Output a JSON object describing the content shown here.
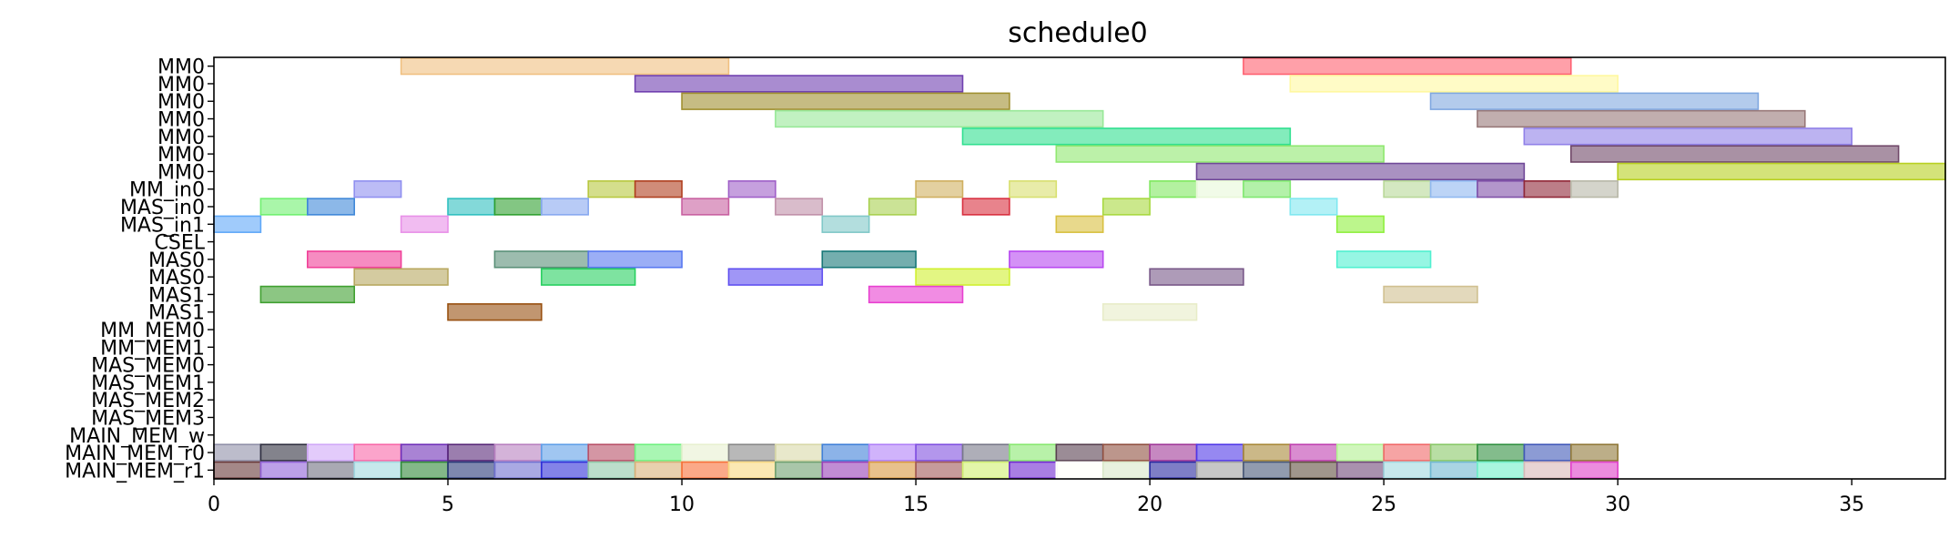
{
  "chart_data": {
    "type": "gantt",
    "title": "schedule0",
    "xlabel": "",
    "ylabel": "",
    "xlim": [
      0,
      37
    ],
    "x_ticks": [
      0,
      5,
      10,
      15,
      20,
      25,
      30,
      35
    ],
    "grid": false,
    "rows": [
      "MM0",
      "MM0",
      "MM0",
      "MM0",
      "MM0",
      "MM0",
      "MM0",
      "MM_in0",
      "MAS_in0",
      "MAS_in1",
      "CSEL",
      "MAS0",
      "MAS0",
      "MAS1",
      "MAS1",
      "MM_MEM0",
      "MM_MEM1",
      "MAS_MEM0",
      "MAS_MEM1",
      "MAS_MEM2",
      "MAS_MEM3",
      "MAIN_MEM_w",
      "MAIN_MEM_r0",
      "MAIN_MEM_r1"
    ],
    "tasks": [
      {
        "row": 0,
        "start": 4,
        "end": 11,
        "color": "#f0c080"
      },
      {
        "row": 0,
        "start": 22,
        "end": 29,
        "color": "#ff6070"
      },
      {
        "row": 1,
        "start": 9,
        "end": 16,
        "color": "#7040b0"
      },
      {
        "row": 1,
        "start": 23,
        "end": 30,
        "color": "#fff8a0"
      },
      {
        "row": 2,
        "start": 10,
        "end": 17,
        "color": "#a09030"
      },
      {
        "row": 2,
        "start": 26,
        "end": 33,
        "color": "#80a8e0"
      },
      {
        "row": 3,
        "start": 12,
        "end": 19,
        "color": "#98e898"
      },
      {
        "row": 3,
        "start": 27,
        "end": 34,
        "color": "#987878"
      },
      {
        "row": 4,
        "start": 16,
        "end": 23,
        "color": "#30e090"
      },
      {
        "row": 4,
        "start": 28,
        "end": 35,
        "color": "#9080e8"
      },
      {
        "row": 5,
        "start": 18,
        "end": 25,
        "color": "#90e870"
      },
      {
        "row": 5,
        "start": 29,
        "end": 36,
        "color": "#704868"
      },
      {
        "row": 6,
        "start": 21,
        "end": 28,
        "color": "#704898"
      },
      {
        "row": 6,
        "start": 30,
        "end": 37,
        "color": "#b8d020"
      },
      {
        "row": 7,
        "start": 3,
        "end": 4,
        "color": "#9090f0"
      },
      {
        "row": 7,
        "start": 8,
        "end": 9,
        "color": "#b8c840"
      },
      {
        "row": 7,
        "start": 9,
        "end": 10,
        "color": "#b04020"
      },
      {
        "row": 7,
        "start": 11,
        "end": 12,
        "color": "#a060c8"
      },
      {
        "row": 7,
        "start": 15,
        "end": 16,
        "color": "#d0b060"
      },
      {
        "row": 7,
        "start": 17,
        "end": 18,
        "color": "#d8e070"
      },
      {
        "row": 7,
        "start": 20,
        "end": 21,
        "color": "#80e860"
      },
      {
        "row": 7,
        "start": 21,
        "end": 22,
        "color": "#e8f8d8"
      },
      {
        "row": 7,
        "start": 22,
        "end": 23,
        "color": "#80e870"
      },
      {
        "row": 7,
        "start": 25,
        "end": 26,
        "color": "#b8d898"
      },
      {
        "row": 7,
        "start": 26,
        "end": 27,
        "color": "#90b8f0"
      },
      {
        "row": 7,
        "start": 27,
        "end": 28,
        "color": "#8050a8"
      },
      {
        "row": 7,
        "start": 28,
        "end": 29,
        "color": "#902838"
      },
      {
        "row": 7,
        "start": 29,
        "end": 30,
        "color": "#b8b8a8"
      },
      {
        "row": 8,
        "start": 1,
        "end": 2,
        "color": "#70f070"
      },
      {
        "row": 8,
        "start": 2,
        "end": 3,
        "color": "#4088d8"
      },
      {
        "row": 8,
        "start": 5,
        "end": 6,
        "color": "#30c0c0"
      },
      {
        "row": 8,
        "start": 6,
        "end": 7,
        "color": "#30a030"
      },
      {
        "row": 8,
        "start": 7,
        "end": 8,
        "color": "#88a8f0"
      },
      {
        "row": 8,
        "start": 10,
        "end": 11,
        "color": "#c860a0"
      },
      {
        "row": 8,
        "start": 12,
        "end": 13,
        "color": "#c090a8"
      },
      {
        "row": 8,
        "start": 14,
        "end": 15,
        "color": "#a8d050"
      },
      {
        "row": 8,
        "start": 16,
        "end": 17,
        "color": "#d83040"
      },
      {
        "row": 8,
        "start": 19,
        "end": 20,
        "color": "#a8d840"
      },
      {
        "row": 8,
        "start": 23,
        "end": 24,
        "color": "#80e8f0"
      },
      {
        "row": 9,
        "start": 0,
        "end": 1,
        "color": "#60a8f8"
      },
      {
        "row": 9,
        "start": 4,
        "end": 5,
        "color": "#e890e8"
      },
      {
        "row": 9,
        "start": 13,
        "end": 14,
        "color": "#80c8c8"
      },
      {
        "row": 9,
        "start": 18,
        "end": 19,
        "color": "#d8c040"
      },
      {
        "row": 9,
        "start": 24,
        "end": 25,
        "color": "#90f040"
      },
      {
        "row": 11,
        "start": 2,
        "end": 4,
        "color": "#f04098"
      },
      {
        "row": 11,
        "start": 6,
        "end": 8,
        "color": "#5a9078"
      },
      {
        "row": 11,
        "start": 8,
        "end": 10,
        "color": "#5878f0"
      },
      {
        "row": 11,
        "start": 13,
        "end": 15,
        "color": "#187878"
      },
      {
        "row": 11,
        "start": 17,
        "end": 19,
        "color": "#b848f0"
      },
      {
        "row": 11,
        "start": 24,
        "end": 26,
        "color": "#50f0d0"
      },
      {
        "row": 12,
        "start": 3,
        "end": 5,
        "color": "#b8a860"
      },
      {
        "row": 12,
        "start": 7,
        "end": 9,
        "color": "#28d060"
      },
      {
        "row": 12,
        "start": 11,
        "end": 13,
        "color": "#6050f0"
      },
      {
        "row": 12,
        "start": 15,
        "end": 17,
        "color": "#d0f030"
      },
      {
        "row": 12,
        "start": 20,
        "end": 22,
        "color": "#785888"
      },
      {
        "row": 13,
        "start": 1,
        "end": 3,
        "color": "#40a030"
      },
      {
        "row": 13,
        "start": 14,
        "end": 16,
        "color": "#e840d0"
      },
      {
        "row": 13,
        "start": 25,
        "end": 27,
        "color": "#d0c090"
      },
      {
        "row": 14,
        "start": 5,
        "end": 7,
        "color": "#985010"
      },
      {
        "row": 14,
        "start": 19,
        "end": 21,
        "color": "#e8ecc8"
      },
      {
        "row": 22,
        "start": 0,
        "end": 1,
        "color": "#9090a8"
      },
      {
        "row": 22,
        "start": 1,
        "end": 2,
        "color": "#303040"
      },
      {
        "row": 22,
        "start": 2,
        "end": 3,
        "color": "#d0a8f8"
      },
      {
        "row": 22,
        "start": 3,
        "end": 4,
        "color": "#f868a8"
      },
      {
        "row": 22,
        "start": 4,
        "end": 5,
        "color": "#7030b8"
      },
      {
        "row": 22,
        "start": 5,
        "end": 6,
        "color": "#582878"
      },
      {
        "row": 22,
        "start": 6,
        "end": 7,
        "color": "#b880c0"
      },
      {
        "row": 22,
        "start": 7,
        "end": 8,
        "color": "#60a0e8"
      },
      {
        "row": 22,
        "start": 8,
        "end": 9,
        "color": "#b85068"
      },
      {
        "row": 22,
        "start": 9,
        "end": 10,
        "color": "#70f080"
      },
      {
        "row": 22,
        "start": 10,
        "end": 11,
        "color": "#e8f0d0"
      },
      {
        "row": 22,
        "start": 11,
        "end": 12,
        "color": "#888888"
      },
      {
        "row": 22,
        "start": 12,
        "end": 13,
        "color": "#d8d8a8"
      },
      {
        "row": 22,
        "start": 13,
        "end": 14,
        "color": "#4080d8"
      },
      {
        "row": 22,
        "start": 14,
        "end": 15,
        "color": "#b080f8"
      },
      {
        "row": 22,
        "start": 15,
        "end": 16,
        "color": "#8050e0"
      },
      {
        "row": 22,
        "start": 16,
        "end": 17,
        "color": "#787888"
      },
      {
        "row": 22,
        "start": 17,
        "end": 18,
        "color": "#88e870"
      },
      {
        "row": 22,
        "start": 18,
        "end": 19,
        "color": "#584050"
      },
      {
        "row": 22,
        "start": 19,
        "end": 20,
        "color": "#905040"
      },
      {
        "row": 22,
        "start": 20,
        "end": 21,
        "color": "#a03898"
      },
      {
        "row": 22,
        "start": 21,
        "end": 22,
        "color": "#5038e8"
      },
      {
        "row": 22,
        "start": 22,
        "end": 23,
        "color": "#a88838"
      },
      {
        "row": 22,
        "start": 23,
        "end": 24,
        "color": "#c040b0"
      },
      {
        "row": 22,
        "start": 24,
        "end": 25,
        "color": "#b0f090"
      },
      {
        "row": 22,
        "start": 25,
        "end": 26,
        "color": "#f06868"
      },
      {
        "row": 22,
        "start": 26,
        "end": 27,
        "color": "#88c868"
      },
      {
        "row": 22,
        "start": 27,
        "end": 28,
        "color": "#309040"
      },
      {
        "row": 22,
        "start": 28,
        "end": 29,
        "color": "#4058b8"
      },
      {
        "row": 22,
        "start": 29,
        "end": 30,
        "color": "#907838"
      },
      {
        "row": 23,
        "start": 0,
        "end": 1,
        "color": "#683838"
      },
      {
        "row": 23,
        "start": 1,
        "end": 2,
        "color": "#9060d8"
      },
      {
        "row": 23,
        "start": 2,
        "end": 3,
        "color": "#707080"
      },
      {
        "row": 23,
        "start": 3,
        "end": 4,
        "color": "#a0d8e0"
      },
      {
        "row": 23,
        "start": 4,
        "end": 5,
        "color": "#308838"
      },
      {
        "row": 23,
        "start": 5,
        "end": 6,
        "color": "#283878"
      },
      {
        "row": 23,
        "start": 6,
        "end": 7,
        "color": "#7070d0"
      },
      {
        "row": 23,
        "start": 7,
        "end": 8,
        "color": "#3030d8"
      },
      {
        "row": 23,
        "start": 8,
        "end": 9,
        "color": "#90c8a8"
      },
      {
        "row": 23,
        "start": 9,
        "end": 10,
        "color": "#d8b078"
      },
      {
        "row": 23,
        "start": 10,
        "end": 11,
        "color": "#f87038"
      },
      {
        "row": 23,
        "start": 11,
        "end": 12,
        "color": "#f8d880"
      },
      {
        "row": 23,
        "start": 12,
        "end": 13,
        "color": "#70a070"
      },
      {
        "row": 23,
        "start": 13,
        "end": 14,
        "color": "#9840b8"
      },
      {
        "row": 23,
        "start": 14,
        "end": 15,
        "color": "#d89840"
      },
      {
        "row": 23,
        "start": 15,
        "end": 16,
        "color": "#a05858"
      },
      {
        "row": 23,
        "start": 16,
        "end": 17,
        "color": "#d0f070"
      },
      {
        "row": 23,
        "start": 17,
        "end": 18,
        "color": "#7028d0"
      },
      {
        "row": 23,
        "start": 18,
        "end": 19,
        "color": "#fffff8"
      },
      {
        "row": 23,
        "start": 19,
        "end": 20,
        "color": "#d8e8c8"
      },
      {
        "row": 23,
        "start": 20,
        "end": 21,
        "color": "#2828a0"
      },
      {
        "row": 23,
        "start": 21,
        "end": 22,
        "color": "#a0a0a0"
      },
      {
        "row": 23,
        "start": 22,
        "end": 23,
        "color": "#485878"
      },
      {
        "row": 23,
        "start": 23,
        "end": 24,
        "color": "#605040"
      },
      {
        "row": 23,
        "start": 24,
        "end": 25,
        "color": "#704878"
      },
      {
        "row": 23,
        "start": 25,
        "end": 26,
        "color": "#a0d8e0"
      },
      {
        "row": 23,
        "start": 26,
        "end": 27,
        "color": "#70b8d0"
      },
      {
        "row": 23,
        "start": 27,
        "end": 28,
        "color": "#70f0c8"
      },
      {
        "row": 23,
        "start": 28,
        "end": 29,
        "color": "#d8b8b8"
      },
      {
        "row": 23,
        "start": 29,
        "end": 30,
        "color": "#e040c8"
      }
    ]
  }
}
